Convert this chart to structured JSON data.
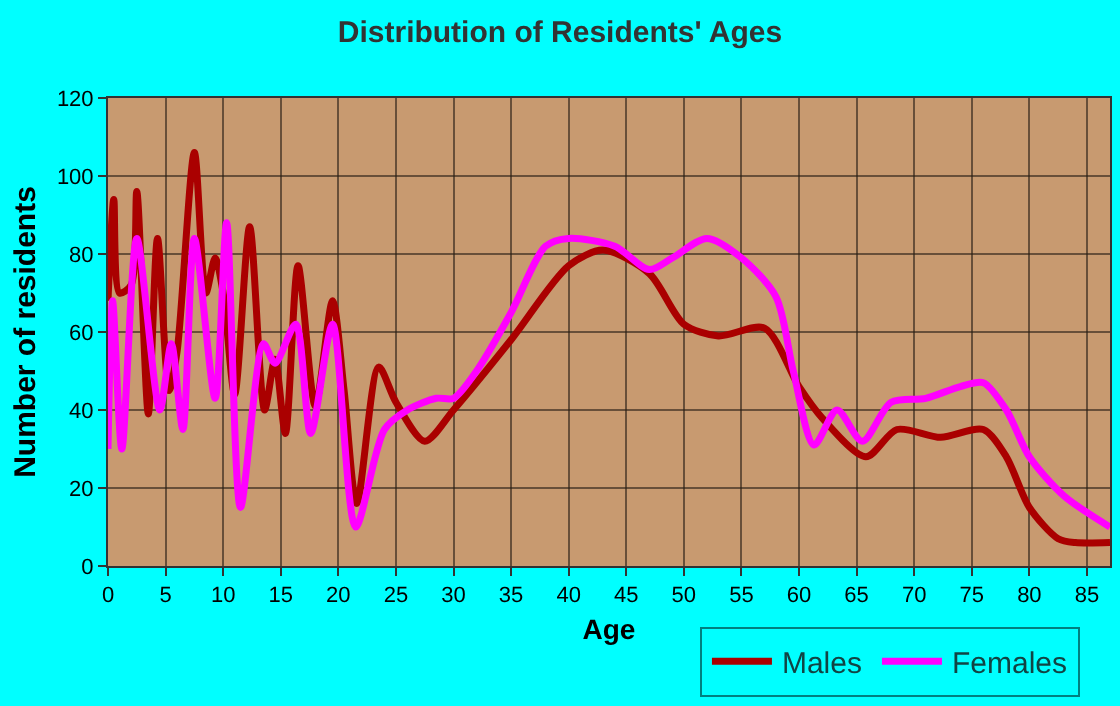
{
  "chart_data": {
    "type": "line",
    "title": "Distribution of Residents' Ages",
    "xlabel": "Age",
    "ylabel": "Number of residents",
    "xlim": [
      0,
      87
    ],
    "xticks": [
      0,
      5,
      10,
      15,
      20,
      25,
      30,
      35,
      40,
      45,
      50,
      55,
      60,
      65,
      70,
      75,
      80,
      85
    ],
    "ylim": [
      0,
      120
    ],
    "yticks": [
      0,
      20,
      40,
      60,
      80,
      100,
      120
    ],
    "grid": true,
    "legend": "bottom",
    "marker": "none",
    "line_style": "solid",
    "series": [
      {
        "name": "Males",
        "color": "#aa0000",
        "x": [
          0,
          0.5,
          1,
          2,
          2.5,
          3.5,
          4.3,
          5.3,
          6,
          7.5,
          8.5,
          9.3,
          10,
          11,
          12.3,
          13.6,
          14.5,
          15.4,
          16.5,
          18,
          19.5,
          20.5,
          21.6,
          23.5,
          25,
          27.5,
          30,
          35,
          40,
          43,
          47,
          50,
          53,
          57,
          60,
          62,
          65.8,
          68.5,
          72.3,
          76,
          78,
          80,
          82.5,
          84,
          87
        ],
        "values": [
          68,
          94,
          70,
          72,
          96,
          39,
          84,
          45,
          55,
          106,
          70,
          79,
          70,
          44,
          87,
          40,
          53,
          34,
          77,
          41,
          68,
          45,
          16,
          51,
          42,
          32,
          40,
          58,
          77,
          81,
          75,
          62,
          59,
          61,
          46,
          38,
          28,
          35,
          33,
          35,
          28,
          15,
          7,
          6,
          6
        ]
      },
      {
        "name": "Females",
        "color": "#ff00ff",
        "x": [
          0,
          0.4,
          1.2,
          2.5,
          4.5,
          5.5,
          6.5,
          7.5,
          9.3,
          10.3,
          11.5,
          13.5,
          14.5,
          16.3,
          17.6,
          19.5,
          21.5,
          24,
          26,
          28.5,
          30,
          32,
          35,
          38,
          40,
          44,
          47,
          49,
          52,
          55,
          58,
          59.5,
          61.3,
          63.3,
          65.5,
          68,
          71,
          74,
          76,
          78,
          80,
          83,
          87
        ],
        "values": [
          30,
          68,
          30,
          84,
          40,
          57,
          35,
          84,
          43,
          88,
          15,
          57,
          52,
          62,
          34,
          62,
          10,
          35,
          40,
          43,
          43,
          50,
          65,
          82,
          84,
          82,
          76,
          79,
          84,
          79,
          69,
          50,
          31,
          40,
          32,
          42,
          43,
          46,
          47,
          40,
          28,
          18,
          10
        ]
      }
    ]
  }
}
